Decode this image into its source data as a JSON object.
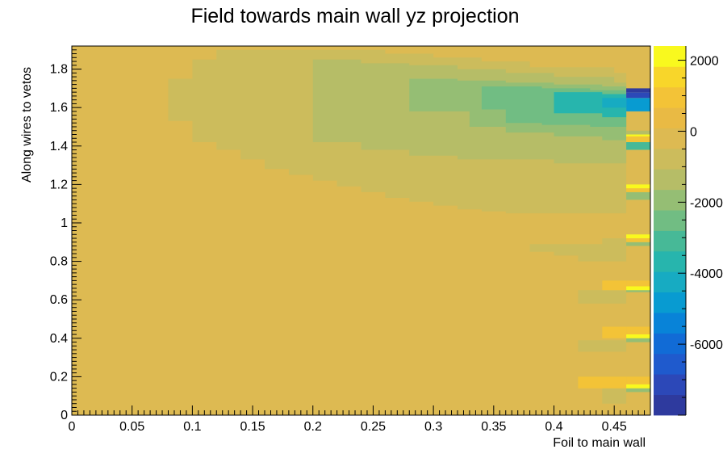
{
  "chart_data": {
    "type": "heatmap",
    "title": "Field towards main wall yz projection",
    "xlabel": "Foil to main wall",
    "ylabel": "Along wires to vetos",
    "xlim": [
      0,
      0.48
    ],
    "ylim": [
      0,
      1.92
    ],
    "x_ticks": [
      "0",
      "0.05",
      "0.1",
      "0.15",
      "0.2",
      "0.25",
      "0.3",
      "0.35",
      "0.4",
      "0.45"
    ],
    "y_ticks": [
      "0",
      "0.2",
      "0.4",
      "0.6",
      "0.8",
      "1",
      "1.2",
      "1.4",
      "1.6",
      "1.8"
    ],
    "colorbar": {
      "ticks": [
        "2000",
        "0",
        "-2000",
        "-4000",
        "-6000"
      ],
      "palette": [
        "#2e3a9e",
        "#2c48b8",
        "#1f5acd",
        "#116bd6",
        "#0883d8",
        "#089bd1",
        "#17abc2",
        "#27b5ad",
        "#47b997",
        "#71bd83",
        "#95be74",
        "#b6bd67",
        "#ccbc5c",
        "#ddba52",
        "#e9ba44",
        "#f3c337",
        "#f8d62a",
        "#f9f91e"
      ]
    },
    "regions": [
      {
        "level": -500,
        "polygon": [
          [
            0.08,
            1.53
          ],
          [
            0.1,
            1.53
          ],
          [
            0.1,
            1.42
          ],
          [
            0.12,
            1.42
          ],
          [
            0.12,
            1.38
          ],
          [
            0.14,
            1.38
          ],
          [
            0.14,
            1.33
          ],
          [
            0.16,
            1.33
          ],
          [
            0.16,
            1.28
          ],
          [
            0.18,
            1.28
          ],
          [
            0.18,
            1.25
          ],
          [
            0.2,
            1.25
          ],
          [
            0.2,
            1.22
          ],
          [
            0.22,
            1.22
          ],
          [
            0.22,
            1.19
          ],
          [
            0.24,
            1.19
          ],
          [
            0.24,
            1.16
          ],
          [
            0.26,
            1.16
          ],
          [
            0.26,
            1.13
          ],
          [
            0.28,
            1.13
          ],
          [
            0.28,
            1.11
          ],
          [
            0.3,
            1.11
          ],
          [
            0.3,
            1.09
          ],
          [
            0.32,
            1.09
          ],
          [
            0.32,
            1.07
          ],
          [
            0.34,
            1.07
          ],
          [
            0.34,
            1.06
          ],
          [
            0.36,
            1.06
          ],
          [
            0.36,
            1.05
          ],
          [
            0.46,
            1.05
          ],
          [
            0.46,
            1.78
          ],
          [
            0.45,
            1.78
          ],
          [
            0.45,
            1.81
          ],
          [
            0.38,
            1.81
          ],
          [
            0.38,
            1.84
          ],
          [
            0.34,
            1.84
          ],
          [
            0.34,
            1.86
          ],
          [
            0.3,
            1.86
          ],
          [
            0.3,
            1.88
          ],
          [
            0.26,
            1.88
          ],
          [
            0.26,
            1.9
          ],
          [
            0.12,
            1.9
          ],
          [
            0.12,
            1.85
          ],
          [
            0.1,
            1.85
          ],
          [
            0.1,
            1.75
          ],
          [
            0.08,
            1.75
          ]
        ]
      },
      {
        "level": -1200,
        "polygon": [
          [
            0.2,
            1.42
          ],
          [
            0.24,
            1.42
          ],
          [
            0.24,
            1.38
          ],
          [
            0.28,
            1.38
          ],
          [
            0.28,
            1.35
          ],
          [
            0.32,
            1.35
          ],
          [
            0.32,
            1.33
          ],
          [
            0.4,
            1.33
          ],
          [
            0.4,
            1.31
          ],
          [
            0.46,
            1.31
          ],
          [
            0.46,
            1.73
          ],
          [
            0.45,
            1.73
          ],
          [
            0.45,
            1.76
          ],
          [
            0.4,
            1.76
          ],
          [
            0.4,
            1.78
          ],
          [
            0.36,
            1.78
          ],
          [
            0.36,
            1.8
          ],
          [
            0.32,
            1.8
          ],
          [
            0.32,
            1.82
          ],
          [
            0.28,
            1.82
          ],
          [
            0.28,
            1.83
          ],
          [
            0.24,
            1.83
          ],
          [
            0.24,
            1.85
          ],
          [
            0.2,
            1.85
          ]
        ]
      },
      {
        "level": -1800,
        "polygon": [
          [
            0.28,
            1.58
          ],
          [
            0.33,
            1.58
          ],
          [
            0.33,
            1.5
          ],
          [
            0.36,
            1.5
          ],
          [
            0.36,
            1.47
          ],
          [
            0.4,
            1.47
          ],
          [
            0.4,
            1.45
          ],
          [
            0.44,
            1.45
          ],
          [
            0.44,
            1.43
          ],
          [
            0.46,
            1.43
          ],
          [
            0.46,
            1.71
          ],
          [
            0.44,
            1.71
          ],
          [
            0.44,
            1.72
          ],
          [
            0.4,
            1.72
          ],
          [
            0.4,
            1.73
          ],
          [
            0.36,
            1.73
          ],
          [
            0.36,
            1.74
          ],
          [
            0.32,
            1.74
          ],
          [
            0.32,
            1.75
          ],
          [
            0.28,
            1.75
          ]
        ]
      },
      {
        "level": -2500,
        "polygon": [
          [
            0.34,
            1.59
          ],
          [
            0.36,
            1.59
          ],
          [
            0.36,
            1.52
          ],
          [
            0.39,
            1.52
          ],
          [
            0.39,
            1.51
          ],
          [
            0.43,
            1.51
          ],
          [
            0.43,
            1.5
          ],
          [
            0.46,
            1.5
          ],
          [
            0.46,
            1.69
          ],
          [
            0.43,
            1.69
          ],
          [
            0.43,
            1.7
          ],
          [
            0.39,
            1.7
          ],
          [
            0.39,
            1.71
          ],
          [
            0.34,
            1.71
          ]
        ]
      },
      {
        "level": -3500,
        "polygon": [
          [
            0.4,
            1.6
          ],
          [
            0.4,
            1.6
          ],
          [
            0.4,
            1.57
          ],
          [
            0.44,
            1.57
          ],
          [
            0.44,
            1.55
          ],
          [
            0.46,
            1.55
          ],
          [
            0.46,
            1.67
          ],
          [
            0.44,
            1.67
          ],
          [
            0.44,
            1.68
          ],
          [
            0.4,
            1.68
          ]
        ]
      },
      {
        "level": -4500,
        "polygon": [
          [
            0.44,
            1.6
          ],
          [
            0.46,
            1.6
          ],
          [
            0.46,
            1.65
          ],
          [
            0.44,
            1.65
          ]
        ]
      },
      {
        "level": -5000,
        "polygon": [
          [
            0.46,
            1.58
          ],
          [
            0.48,
            1.58
          ],
          [
            0.48,
            1.65
          ],
          [
            0.46,
            1.65
          ]
        ]
      },
      {
        "level": -7000,
        "polygon": [
          [
            0.46,
            1.65
          ],
          [
            0.48,
            1.65
          ],
          [
            0.48,
            1.68
          ],
          [
            0.46,
            1.68
          ]
        ]
      },
      {
        "level": -8000,
        "polygon": [
          [
            0.46,
            1.68
          ],
          [
            0.48,
            1.68
          ],
          [
            0.48,
            1.7
          ],
          [
            0.46,
            1.7
          ]
        ]
      },
      {
        "level": -3000,
        "polygon": [
          [
            0.46,
            1.38
          ],
          [
            0.48,
            1.38
          ],
          [
            0.48,
            1.42
          ],
          [
            0.46,
            1.42
          ]
        ]
      },
      {
        "level": 1200,
        "polygon": [
          [
            0.46,
            1.42
          ],
          [
            0.48,
            1.42
          ],
          [
            0.48,
            1.45
          ],
          [
            0.46,
            1.45
          ]
        ]
      },
      {
        "level": 2000,
        "polygon": [
          [
            0.46,
            1.45
          ],
          [
            0.48,
            1.45
          ],
          [
            0.48,
            1.46
          ],
          [
            0.46,
            1.46
          ]
        ]
      },
      {
        "level": -1200,
        "polygon": [
          [
            0.46,
            1.46
          ],
          [
            0.48,
            1.46
          ],
          [
            0.48,
            1.48
          ],
          [
            0.46,
            1.48
          ]
        ]
      },
      {
        "level": -500,
        "polygon": [
          [
            0.44,
            1.1
          ],
          [
            0.46,
            1.1
          ],
          [
            0.46,
            1.2
          ],
          [
            0.44,
            1.2
          ]
        ]
      },
      {
        "level": -2000,
        "polygon": [
          [
            0.46,
            1.12
          ],
          [
            0.48,
            1.12
          ],
          [
            0.48,
            1.16
          ],
          [
            0.46,
            1.16
          ]
        ]
      },
      {
        "level": 1200,
        "polygon": [
          [
            0.46,
            1.16
          ],
          [
            0.48,
            1.16
          ],
          [
            0.48,
            1.18
          ],
          [
            0.46,
            1.18
          ]
        ]
      },
      {
        "level": 2000,
        "polygon": [
          [
            0.46,
            1.18
          ],
          [
            0.48,
            1.18
          ],
          [
            0.48,
            1.2
          ],
          [
            0.46,
            1.2
          ]
        ]
      },
      {
        "level": -500,
        "polygon": [
          [
            0.38,
            0.85
          ],
          [
            0.4,
            0.85
          ],
          [
            0.4,
            0.83
          ],
          [
            0.42,
            0.83
          ],
          [
            0.42,
            0.8
          ],
          [
            0.46,
            0.8
          ],
          [
            0.46,
            0.92
          ],
          [
            0.44,
            0.92
          ],
          [
            0.44,
            0.89
          ],
          [
            0.38,
            0.89
          ]
        ]
      },
      {
        "level": -1800,
        "polygon": [
          [
            0.46,
            0.88
          ],
          [
            0.48,
            0.88
          ],
          [
            0.48,
            0.9
          ],
          [
            0.46,
            0.9
          ]
        ]
      },
      {
        "level": 1200,
        "polygon": [
          [
            0.46,
            0.9
          ],
          [
            0.48,
            0.9
          ],
          [
            0.48,
            0.92
          ],
          [
            0.46,
            0.92
          ]
        ]
      },
      {
        "level": 2000,
        "polygon": [
          [
            0.46,
            0.92
          ],
          [
            0.48,
            0.92
          ],
          [
            0.48,
            0.94
          ],
          [
            0.46,
            0.94
          ]
        ]
      },
      {
        "level": -500,
        "polygon": [
          [
            0.42,
            0.58
          ],
          [
            0.46,
            0.58
          ],
          [
            0.46,
            0.65
          ],
          [
            0.42,
            0.65
          ]
        ]
      },
      {
        "level": 800,
        "polygon": [
          [
            0.44,
            0.65
          ],
          [
            0.46,
            0.65
          ],
          [
            0.46,
            0.7
          ],
          [
            0.44,
            0.7
          ]
        ]
      },
      {
        "level": 800,
        "polygon": [
          [
            0.46,
            0.66
          ],
          [
            0.48,
            0.66
          ],
          [
            0.48,
            0.7
          ],
          [
            0.46,
            0.7
          ]
        ]
      },
      {
        "level": -1800,
        "polygon": [
          [
            0.46,
            0.64
          ],
          [
            0.48,
            0.64
          ],
          [
            0.48,
            0.66
          ],
          [
            0.46,
            0.66
          ]
        ]
      },
      {
        "level": 2000,
        "polygon": [
          [
            0.46,
            0.65
          ],
          [
            0.48,
            0.65
          ],
          [
            0.48,
            0.67
          ],
          [
            0.46,
            0.67
          ]
        ]
      },
      {
        "level": -500,
        "polygon": [
          [
            0.42,
            0.33
          ],
          [
            0.46,
            0.33
          ],
          [
            0.46,
            0.39
          ],
          [
            0.42,
            0.39
          ]
        ]
      },
      {
        "level": 800,
        "polygon": [
          [
            0.44,
            0.4
          ],
          [
            0.46,
            0.4
          ],
          [
            0.46,
            0.46
          ],
          [
            0.44,
            0.46
          ]
        ]
      },
      {
        "level": 800,
        "polygon": [
          [
            0.46,
            0.42
          ],
          [
            0.48,
            0.42
          ],
          [
            0.48,
            0.46
          ],
          [
            0.46,
            0.46
          ]
        ]
      },
      {
        "level": -1800,
        "polygon": [
          [
            0.46,
            0.38
          ],
          [
            0.48,
            0.38
          ],
          [
            0.48,
            0.4
          ],
          [
            0.46,
            0.4
          ]
        ]
      },
      {
        "level": 2000,
        "polygon": [
          [
            0.46,
            0.4
          ],
          [
            0.48,
            0.4
          ],
          [
            0.48,
            0.42
          ],
          [
            0.46,
            0.42
          ]
        ]
      },
      {
        "level": -500,
        "polygon": [
          [
            0.44,
            0.06
          ],
          [
            0.46,
            0.06
          ],
          [
            0.46,
            0.14
          ],
          [
            0.44,
            0.14
          ]
        ]
      },
      {
        "level": 800,
        "polygon": [
          [
            0.42,
            0.14
          ],
          [
            0.46,
            0.14
          ],
          [
            0.46,
            0.2
          ],
          [
            0.42,
            0.2
          ]
        ]
      },
      {
        "level": 800,
        "polygon": [
          [
            0.46,
            0.16
          ],
          [
            0.48,
            0.16
          ],
          [
            0.48,
            0.2
          ],
          [
            0.46,
            0.2
          ]
        ]
      },
      {
        "level": -1800,
        "polygon": [
          [
            0.46,
            0.12
          ],
          [
            0.48,
            0.12
          ],
          [
            0.48,
            0.14
          ],
          [
            0.46,
            0.14
          ]
        ]
      },
      {
        "level": 2000,
        "polygon": [
          [
            0.46,
            0.14
          ],
          [
            0.48,
            0.14
          ],
          [
            0.48,
            0.16
          ],
          [
            0.46,
            0.16
          ]
        ]
      }
    ]
  }
}
